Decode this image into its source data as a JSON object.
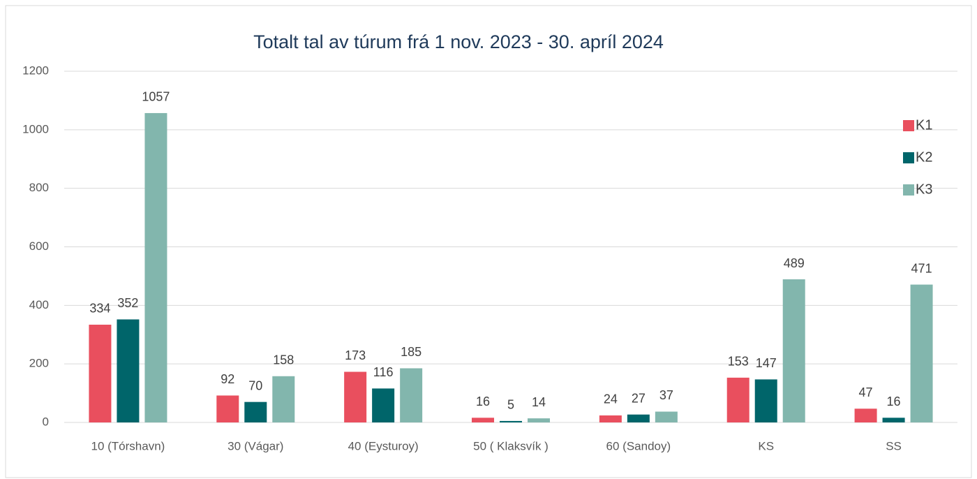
{
  "chart_data": {
    "type": "bar",
    "title": "Totalt tal av túrum frá 1 nov. 2023 - 30. apríl 2024",
    "categories": [
      "10 (Tórshavn)",
      "30 (Vágar)",
      "40 (Eysturoy)",
      "50 ( Klaksvík )",
      "60 (Sandoy)",
      "KS",
      "SS"
    ],
    "series": [
      {
        "name": "K1",
        "color": "#e94f5e",
        "values": [
          334,
          92,
          173,
          16,
          24,
          153,
          47
        ]
      },
      {
        "name": "K2",
        "color": "#00656a",
        "values": [
          352,
          70,
          116,
          5,
          27,
          147,
          16
        ]
      },
      {
        "name": "K3",
        "color": "#82b6ad",
        "values": [
          1057,
          158,
          185,
          14,
          37,
          489,
          471
        ]
      }
    ],
    "ylim": [
      0,
      1200
    ],
    "yticks": [
      0,
      200,
      400,
      600,
      800,
      1000,
      1200
    ],
    "grid": true,
    "legend": "right",
    "data_labels": true
  }
}
